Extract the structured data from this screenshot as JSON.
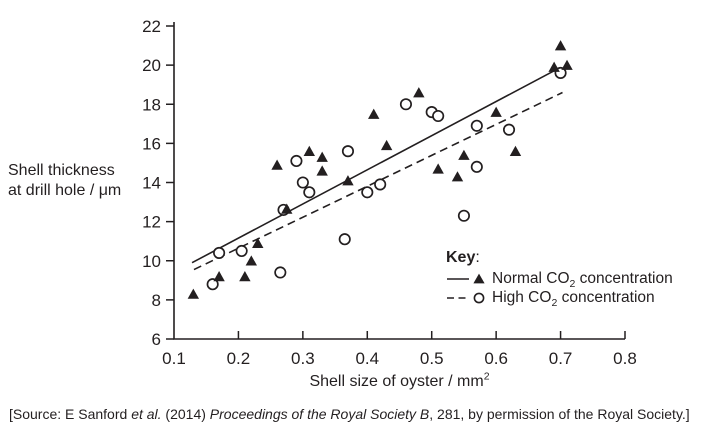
{
  "colors": {
    "foreground": "#231f20",
    "background": "#ffffff"
  },
  "chart_data": {
    "type": "scatter",
    "title": "",
    "xlabel": {
      "text": "Shell size of oyster / mm",
      "sup": "2",
      "full": "Shell size of oyster / mm²"
    },
    "ylabel_lines": [
      "Shell thickness",
      "at drill hole / μm"
    ],
    "xlim": [
      0.1,
      0.8
    ],
    "ylim": [
      6,
      22
    ],
    "xticks": [
      0.1,
      0.2,
      0.3,
      0.4,
      0.5,
      0.6,
      0.7,
      0.8
    ],
    "xtick_labels": [
      "0.1",
      "0.2",
      "0.3",
      "0.4",
      "0.5",
      "0.6",
      "0.7",
      "0.8"
    ],
    "yticks": [
      6,
      8,
      10,
      12,
      14,
      16,
      18,
      20,
      22
    ],
    "ytick_labels": [
      "6",
      "8",
      "10",
      "12",
      "14",
      "16",
      "18",
      "20",
      "22"
    ],
    "grid": false,
    "legend_position": "inside-bottom-right",
    "series": [
      {
        "id": "normal-co2",
        "name": "Normal CO₂ concentration",
        "marker": "filled-triangle",
        "line": "solid",
        "trend": [
          [
            0.128,
            9.9
          ],
          [
            0.698,
            19.85
          ]
        ],
        "points": [
          [
            0.13,
            8.3
          ],
          [
            0.17,
            9.2
          ],
          [
            0.21,
            9.2
          ],
          [
            0.22,
            10.0
          ],
          [
            0.23,
            10.9
          ],
          [
            0.26,
            14.9
          ],
          [
            0.275,
            12.65
          ],
          [
            0.31,
            15.6
          ],
          [
            0.33,
            15.3
          ],
          [
            0.33,
            14.6
          ],
          [
            0.37,
            14.1
          ],
          [
            0.41,
            17.5
          ],
          [
            0.43,
            15.9
          ],
          [
            0.48,
            18.6
          ],
          [
            0.51,
            14.7
          ],
          [
            0.54,
            14.3
          ],
          [
            0.55,
            15.4
          ],
          [
            0.6,
            17.6
          ],
          [
            0.63,
            15.6
          ],
          [
            0.69,
            19.9
          ],
          [
            0.7,
            21.0
          ],
          [
            0.71,
            20.0
          ]
        ]
      },
      {
        "id": "high-co2",
        "name": "High CO₂ concentration",
        "marker": "open-circle",
        "line": "dashed",
        "trend": [
          [
            0.131,
            9.55
          ],
          [
            0.703,
            18.6
          ]
        ],
        "points": [
          [
            0.16,
            8.8
          ],
          [
            0.17,
            10.4
          ],
          [
            0.205,
            10.5
          ],
          [
            0.265,
            9.4
          ],
          [
            0.27,
            12.6
          ],
          [
            0.29,
            15.1
          ],
          [
            0.3,
            14.0
          ],
          [
            0.31,
            13.5
          ],
          [
            0.37,
            15.6
          ],
          [
            0.365,
            11.1
          ],
          [
            0.4,
            13.5
          ],
          [
            0.42,
            13.9
          ],
          [
            0.46,
            18.0
          ],
          [
            0.5,
            17.6
          ],
          [
            0.51,
            17.4
          ],
          [
            0.55,
            12.3
          ],
          [
            0.57,
            16.9
          ],
          [
            0.57,
            14.8
          ],
          [
            0.62,
            16.7
          ],
          [
            0.7,
            19.6
          ]
        ]
      }
    ]
  },
  "legend": {
    "title": "Key",
    "colon": ":",
    "normal": {
      "pre": "Normal CO",
      "sub": "2",
      "post": " concentration"
    },
    "high": {
      "pre": "High CO",
      "sub": "2",
      "post": " concentration"
    }
  },
  "source": {
    "parts": [
      "[Source: E Sanford ",
      "et al.",
      " (2014) ",
      "Proceedings of the Royal Society B",
      ", 281, by permission of the Royal Society.]"
    ]
  }
}
